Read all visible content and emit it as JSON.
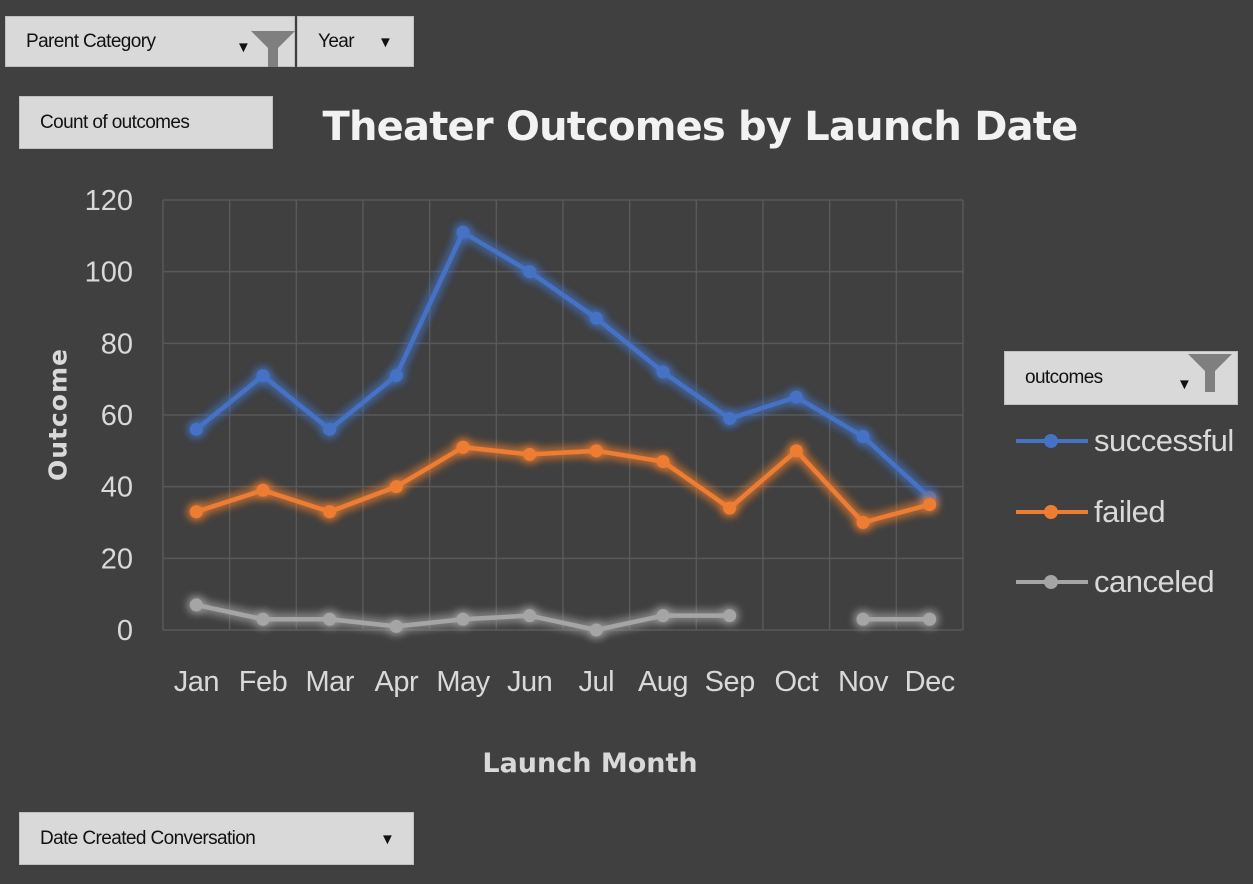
{
  "filters": {
    "parent_category": "Parent Category",
    "year": "Year",
    "count_field": "Count of outcomes",
    "outcomes": "outcomes",
    "date_created": "Date Created Conversation"
  },
  "colors": {
    "background": "#404040",
    "successful": "#4472c4",
    "failed": "#ed7d31",
    "canceled": "#a5a5a5",
    "grid": "#595959"
  },
  "icons": {
    "dropdown": "chevron-down-icon",
    "filter": "filter-icon"
  },
  "chart_data": {
    "type": "line",
    "title": "Theater Outcomes by Launch Date",
    "xlabel": "Launch Month",
    "ylabel": "Outcome",
    "categories": [
      "Jan",
      "Feb",
      "Mar",
      "Apr",
      "May",
      "Jun",
      "Jul",
      "Aug",
      "Sep",
      "Oct",
      "Nov",
      "Dec"
    ],
    "ylim": [
      0,
      120
    ],
    "yticks": [
      0,
      20,
      40,
      60,
      80,
      100,
      120
    ],
    "grid": true,
    "legend": "right",
    "series": [
      {
        "name": "successful",
        "values": [
          56,
          71,
          56,
          71,
          111,
          100,
          87,
          72,
          59,
          65,
          54,
          37
        ]
      },
      {
        "name": "failed",
        "values": [
          33,
          39,
          33,
          40,
          51,
          49,
          50,
          47,
          34,
          50,
          30,
          35
        ]
      },
      {
        "name": "canceled",
        "values": [
          7,
          3,
          3,
          1,
          3,
          4,
          0,
          4,
          4,
          null,
          3,
          3
        ]
      }
    ]
  }
}
